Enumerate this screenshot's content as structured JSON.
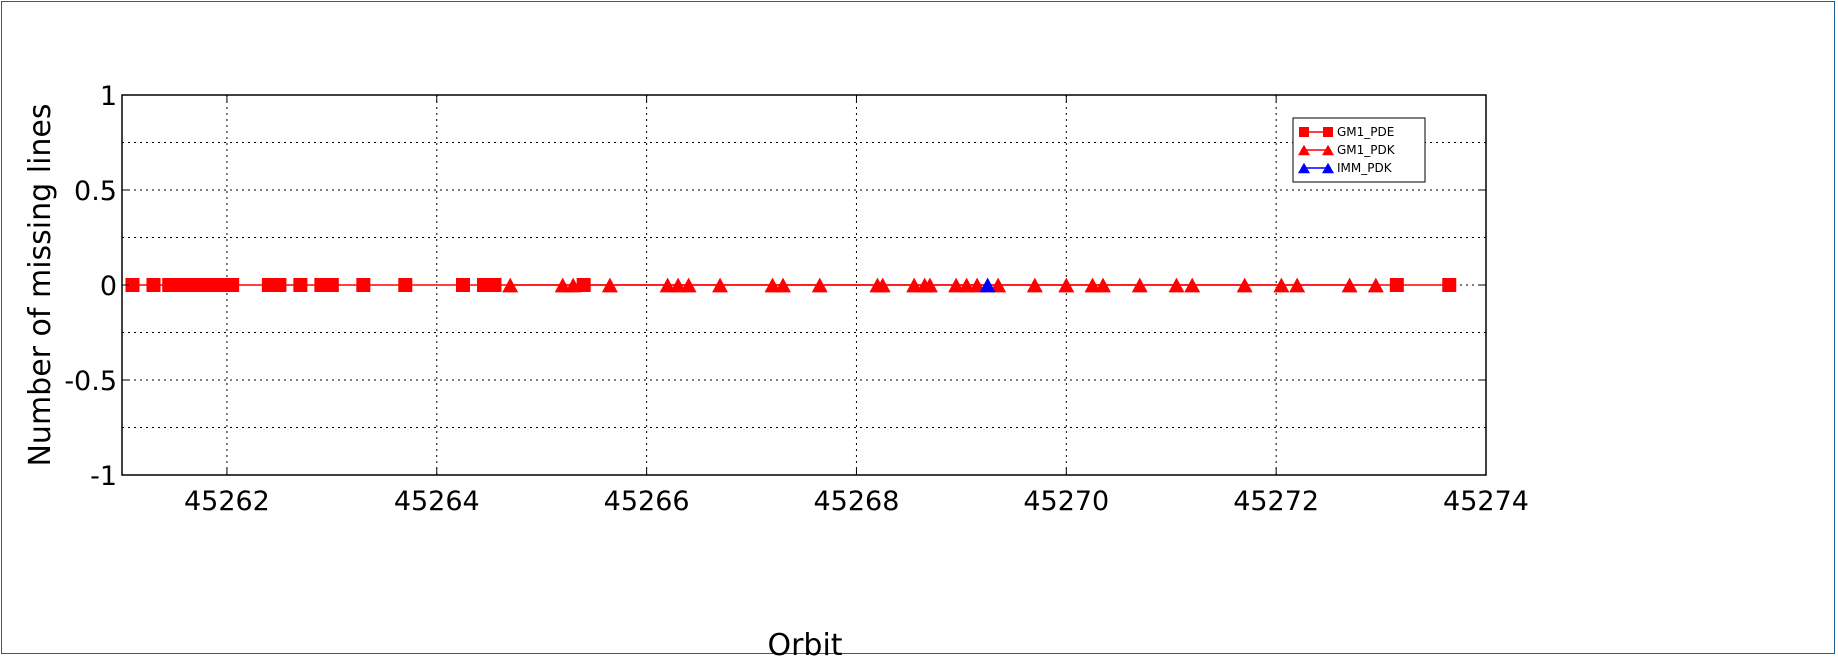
{
  "chart_data": {
    "type": "line",
    "title": "",
    "xlabel": "Orbit",
    "ylabel": "Number of missing lines",
    "xlim": [
      45261,
      45274
    ],
    "ylim": [
      -1,
      1
    ],
    "xticks": [
      45262,
      45264,
      45266,
      45268,
      45270,
      45272,
      45274
    ],
    "yticks": [
      -1,
      -0.5,
      0,
      0.5,
      1
    ],
    "xtick_labels": [
      "45262",
      "45264",
      "45266",
      "45268",
      "45270",
      "45272",
      "45274"
    ],
    "ytick_labels": [
      "-1",
      "-0.5",
      "0",
      "0.5",
      "1"
    ],
    "grid": true,
    "legend_position": "top-right",
    "series": [
      {
        "name": "GM1_PDE",
        "marker": "square",
        "color": "#ff0000",
        "x": [
          45261.1,
          45261.3,
          45261.45,
          45261.55,
          45261.62,
          45261.7,
          45261.78,
          45261.85,
          45261.92,
          45262.05,
          45262.4,
          45262.5,
          45262.7,
          45262.9,
          45263.0,
          45263.3,
          45263.7,
          45264.25,
          45264.45,
          45264.55,
          45265.4,
          45273.15,
          45273.65
        ],
        "y": [
          0,
          0,
          0,
          0,
          0,
          0,
          0,
          0,
          0,
          0,
          0,
          0,
          0,
          0,
          0,
          0,
          0,
          0,
          0,
          0,
          0,
          0,
          0
        ]
      },
      {
        "name": "GM1_PDK",
        "marker": "triangle",
        "color": "#ff0000",
        "x": [
          45264.7,
          45265.2,
          45265.3,
          45265.65,
          45266.2,
          45266.3,
          45266.4,
          45266.7,
          45267.2,
          45267.3,
          45267.65,
          45268.2,
          45268.25,
          45268.55,
          45268.65,
          45268.7,
          45268.95,
          45269.05,
          45269.15,
          45269.35,
          45269.7,
          45270.0,
          45270.25,
          45270.35,
          45270.7,
          45271.05,
          45271.2,
          45271.7,
          45272.05,
          45272.2,
          45272.7,
          45272.95
        ],
        "y": [
          0,
          0,
          0,
          0,
          0,
          0,
          0,
          0,
          0,
          0,
          0,
          0,
          0,
          0,
          0,
          0,
          0,
          0,
          0,
          0,
          0,
          0,
          0,
          0,
          0,
          0,
          0,
          0,
          0,
          0,
          0,
          0
        ]
      },
      {
        "name": "IMM_PDK",
        "marker": "triangle",
        "color": "#0000ff",
        "x": [
          45269.25
        ],
        "y": [
          0
        ]
      }
    ]
  }
}
